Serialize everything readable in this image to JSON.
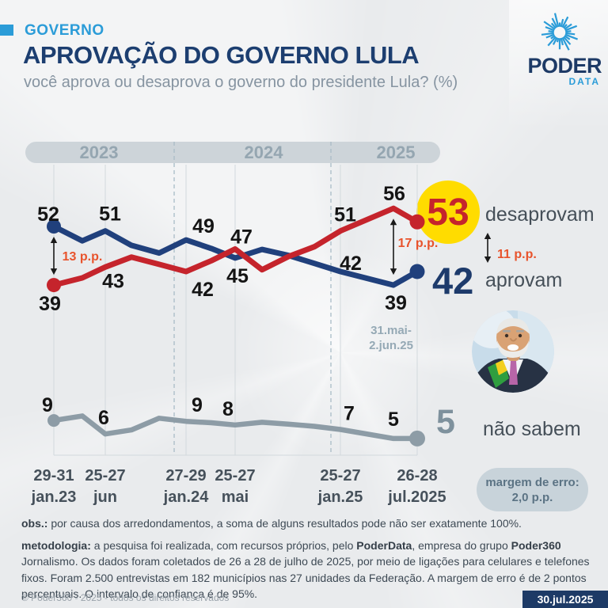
{
  "header": {
    "kicker": "GOVERNO",
    "title": "APROVAÇÃO DO GOVERNO LULA",
    "subtitle": "você aprova ou desaprova o governo do presidente Lula? (%)"
  },
  "logo": {
    "word": "PODER",
    "sub": "DATA"
  },
  "colors": {
    "accent": "#2b9cd8",
    "navy": "#1d3a6b",
    "red": "#c5242c",
    "blue_line": "#20407c",
    "gray_line": "#8d9ca6",
    "yellow": "#ffdc00",
    "orange": "#e8532c",
    "band": "#cdd4d9",
    "band_text": "#95a6b1",
    "grid": "#d2d9dd",
    "dashed": "#a9bcc7",
    "axis_text": "#46515b",
    "label": "#141414",
    "annotation": "#95a9b5",
    "arrow": "#1a1a1a"
  },
  "chart_data": {
    "type": "line",
    "title": "APROVAÇÃO DO GOVERNO LULA",
    "subtitle": "você aprova ou desaprova o governo do presidente Lula? (%)",
    "unit": "%",
    "years": [
      "2023",
      "2024",
      "2025"
    ],
    "series": [
      {
        "id": "d",
        "name": "desaprovam",
        "color": "#c5242c"
      },
      {
        "id": "a",
        "name": "aprovam",
        "color": "#20407c"
      },
      {
        "id": "n",
        "name": "não sabem",
        "color": "#8d9ca6"
      }
    ],
    "labeled_points": [
      {
        "date": "29-31 jan.23",
        "desaprovam": 39,
        "aprovam": 52,
        "nao_sabem": 9
      },
      {
        "date": "25-27 jun.23",
        "desaprovam": 43,
        "aprovam": 51,
        "nao_sabem": 6
      },
      {
        "date": "27-29 jan.24",
        "desaprovam": 42,
        "aprovam": 49,
        "nao_sabem": 9
      },
      {
        "date": "25-27 mai.24",
        "desaprovam": 47,
        "aprovam": 45,
        "nao_sabem": 8
      },
      {
        "date": "25-27 jan.25",
        "desaprovam": 51,
        "aprovam": 42,
        "nao_sabem": 7
      },
      {
        "date": "31.mai-2.jun.25",
        "desaprovam": 56,
        "aprovam": 39,
        "nao_sabem": 5
      },
      {
        "date": "26-28 jul.2025",
        "desaprovam": 53,
        "aprovam": 42,
        "nao_sabem": 5
      }
    ],
    "waves": [
      {
        "x": 68,
        "d": 39,
        "a": 52,
        "n": 9,
        "date": [
          "29-31",
          "jan.23"
        ],
        "lab": {
          "a": [
            "above",
            -7,
            6
          ],
          "d": [
            "below",
            -5,
            1
          ],
          "n": [
            "above",
            -8,
            1
          ]
        }
      },
      {
        "x": 104,
        "d": 40.6,
        "a": 48.8,
        "n": 10
      },
      {
        "x": 133,
        "d": 43,
        "a": 51,
        "n": 6,
        "date": [
          "25-27",
          "jun"
        ],
        "lab": {
          "a": [
            "above",
            6,
            0
          ],
          "d": [
            "below",
            10,
            -5
          ],
          "n": [
            "above",
            -2,
            0
          ]
        }
      },
      {
        "x": 166,
        "d": 45.2,
        "a": 47.8,
        "n": 6.9
      },
      {
        "x": 201,
        "d": 43.6,
        "a": 46.1,
        "n": 9.5
      },
      {
        "x": 235,
        "d": 42,
        "a": 49,
        "n": 8.8,
        "date": [
          "27-29",
          "jan.24"
        ],
        "lab": {
          "a": [
            "above",
            22,
            4
          ],
          "d": [
            "below",
            21,
            0
          ],
          "n": [
            "above",
            14,
            0
          ]
        }
      },
      {
        "x": 267,
        "d": 44.4,
        "a": 47.1,
        "n": 8.5
      },
      {
        "x": 297,
        "d": 47,
        "a": 45,
        "n": 8,
        "date": [
          "25-27",
          "mai"
        ],
        "lab": {
          "a": [
            "below",
            3,
            0
          ],
          "d": [
            "above",
            8,
            6
          ],
          "n": [
            "above",
            -9,
            0
          ]
        }
      },
      {
        "x": 331,
        "d": 42.4,
        "a": 46.9,
        "n": 8.6
      },
      {
        "x": 364,
        "d": 45.3,
        "a": 45.6,
        "n": 8.2
      },
      {
        "x": 397,
        "d": 47.5,
        "a": 43.8,
        "n": 7.7
      },
      {
        "x": 430,
        "d": 51,
        "a": 42,
        "n": 7,
        "date": [
          "25-27",
          "jan.25"
        ],
        "lab": {
          "a": [
            "above",
            13,
            11
          ],
          "d": [
            "above",
            6,
            1
          ],
          "n": [
            "above",
            11,
            0
          ]
        }
      },
      {
        "x": 497,
        "d": 56,
        "a": 39,
        "n": 5,
        "lab": {
          "a": [
            "below",
            3,
            0
          ],
          "d": [
            "above",
            1,
            3
          ],
          "n": [
            "above",
            0,
            -4
          ]
        }
      },
      {
        "x": 527,
        "d": 53,
        "a": 42,
        "n": 5,
        "date": [
          "26-28",
          "jul.2025"
        ]
      }
    ],
    "gaps": [
      {
        "label": "13 p.p.",
        "x": 68,
        "top": 52,
        "bottom": 39,
        "label_x": 104,
        "label_y": 169,
        "anchor": "middle"
      },
      {
        "label": "17 p.p.",
        "x": 497,
        "top": 56,
        "bottom": 39,
        "label_x": 528,
        "label_y": 152,
        "anchor": "middle"
      },
      {
        "label": "11 p.p.",
        "x": 616,
        "y1": 134,
        "y2": 172,
        "label_x": 628,
        "label_y": 166,
        "anchor": "start"
      }
    ],
    "annotation": [
      "31.mai-",
      "2.jun.25"
    ],
    "final": {
      "desaprovam": 53,
      "aprovam": 42,
      "nao_sabem": 5
    }
  },
  "legend": {
    "desaprovam_value": "53",
    "desaprovam_label": "desaprovam",
    "aprovam_value": "42",
    "aprovam_label": "aprovam",
    "nao_sabem_value": "5",
    "nao_sabem_label": "não sabem"
  },
  "margin_note": {
    "line1": "margem de erro:",
    "line2": "2,0 p.p."
  },
  "notes": {
    "obs": [
      {
        "b": "obs.:"
      },
      {
        "t": " por causa dos arredondamentos, a soma de alguns resultados pode não ser exatamente 100%."
      }
    ],
    "metodologia": [
      {
        "b": "metodologia:"
      },
      {
        "t": " a pesquisa foi realizada, com recursos próprios, pelo "
      },
      {
        "b": "PoderData"
      },
      {
        "t": ", empresa do grupo "
      },
      {
        "b": "Poder360"
      },
      {
        "t": " Jornalismo. Os dados foram coletados de 26 a 28 de julho de 2025, por meio de ligações para celulares e telefones fixos. Foram 2.500 entrevistas em 182 municípios nas 27 unidades da Federação. A margem de erro é de 2 pontos percentuais. O intervalo de confiança é de 95%."
      }
    ]
  },
  "footer": {
    "copyright": "© Poder360 - 2025 - todos os direitos reservados",
    "date": "30.jul.2025"
  }
}
